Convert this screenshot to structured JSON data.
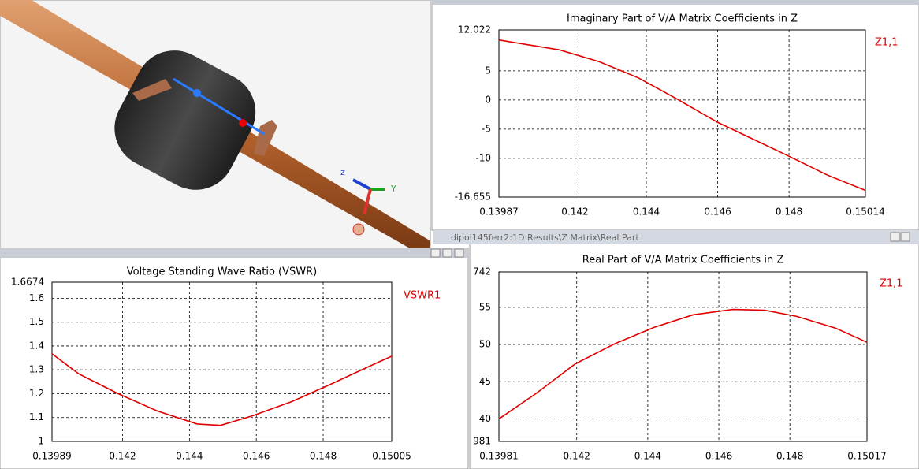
{
  "scene": {
    "axis_labels": [
      "z",
      "Y"
    ]
  },
  "chart_data": [
    {
      "type": "line",
      "title": "Imaginary Part of V/A Matrix Coefficients in Z",
      "x": [
        0.13987,
        0.14157,
        0.14267,
        0.14378,
        0.14488,
        0.14599,
        0.14709,
        0.14798,
        0.14908,
        0.15014
      ],
      "series": [
        {
          "name": "Z1,1",
          "color": "#e00000",
          "values": [
            10.3,
            8.6,
            6.6,
            3.8,
            0.1,
            -3.8,
            -7.0,
            -9.6,
            -12.9,
            -15.5
          ]
        }
      ],
      "xlim": [
        0.13987,
        0.15014
      ],
      "ylim": [
        -16.655,
        12.022
      ],
      "xticks": [
        0.13987,
        0.142,
        0.144,
        0.146,
        0.148,
        0.15014
      ],
      "yticks": [
        -16.655,
        -10,
        -5,
        0,
        5,
        12.022
      ],
      "grid": true
    },
    {
      "type": "line",
      "title": "Voltage Standing Wave Ratio (VSWR)",
      "x": [
        0.13989,
        0.14069,
        0.14187,
        0.14305,
        0.14423,
        0.14493,
        0.14588,
        0.14706,
        0.14823,
        0.14941,
        0.15005
      ],
      "series": [
        {
          "name": "VSWR1",
          "color": "#e00000",
          "values": [
            1.367,
            1.283,
            1.2,
            1.127,
            1.073,
            1.067,
            1.107,
            1.167,
            1.24,
            1.317,
            1.357
          ]
        }
      ],
      "xlim": [
        0.13989,
        0.15005
      ],
      "ylim": [
        1,
        1.6674
      ],
      "xticks": [
        0.13989,
        0.142,
        0.144,
        0.146,
        0.148,
        0.15005
      ],
      "yticks": [
        1,
        1.1,
        1.2,
        1.3,
        1.4,
        1.5,
        1.6,
        1.6674
      ],
      "grid": true
    },
    {
      "type": "line",
      "title": "Real Part of V/A Matrix Coefficients in Z",
      "window_title": "dipol145ferr2:1D Results\\Z Matrix\\Real Part",
      "x": [
        0.13981,
        0.14085,
        0.14196,
        0.14307,
        0.14418,
        0.14529,
        0.1464,
        0.14729,
        0.14817,
        0.14928,
        0.15017
      ],
      "series": [
        {
          "name": "Z1,1",
          "color": "#e00000",
          "values": [
            40,
            43.4,
            47.4,
            50.1,
            52.3,
            54.0,
            54.7,
            54.6,
            53.8,
            52.2,
            50.3
          ]
        }
      ],
      "xlim": [
        0.13981,
        0.15017
      ],
      "ylim": [
        36.981,
        59.742
      ],
      "xticks": [
        0.13981,
        0.142,
        0.144,
        0.146,
        0.148,
        0.15017
      ],
      "yticks": [
        {
          "value": 36.981,
          "label": "981"
        },
        40,
        45,
        50,
        55,
        {
          "value": 59.742,
          "label": "742"
        }
      ],
      "grid": true
    }
  ]
}
